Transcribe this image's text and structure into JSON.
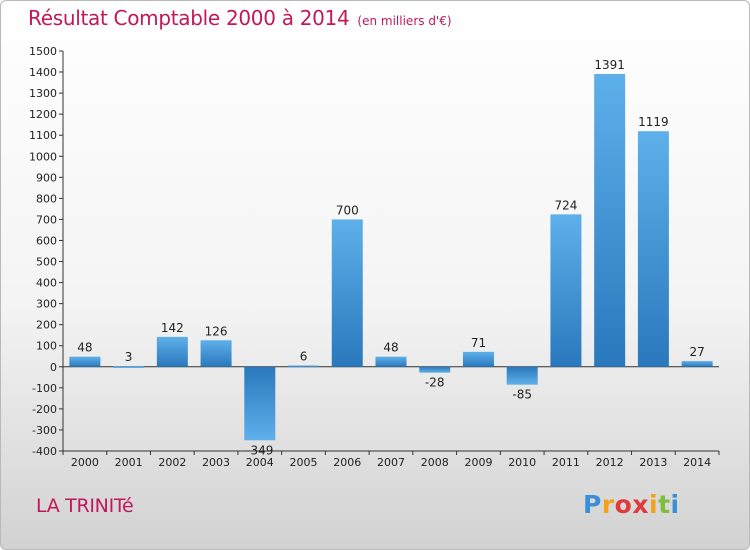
{
  "header": {
    "title": "Résultat Comptable 2000 à 2014",
    "subtitle": "(en milliers d'€)"
  },
  "footer": {
    "commune": "LA TRINITé",
    "logo_letters": [
      {
        "ch": "P",
        "color": "#3a8fd8"
      },
      {
        "ch": "r",
        "color": "#f2a21b"
      },
      {
        "ch": "o",
        "color": "#e23a3a"
      },
      {
        "ch": "x",
        "color": "#e23a3a"
      },
      {
        "ch": "i",
        "color": "#f2a21b"
      },
      {
        "ch": "t",
        "color": "#7cbf3b"
      },
      {
        "ch": "i",
        "color": "#3a8fd8"
      }
    ]
  },
  "chart_data": {
    "type": "bar",
    "categories": [
      "2000",
      "2001",
      "2002",
      "2003",
      "2004",
      "2005",
      "2006",
      "2007",
      "2008",
      "2009",
      "2010",
      "2011",
      "2012",
      "2013",
      "2014"
    ],
    "values": [
      48,
      3,
      142,
      126,
      -349,
      6,
      700,
      48,
      -28,
      71,
      -85,
      724,
      1391,
      1119,
      27
    ],
    "data_labels": [
      "48",
      "3",
      "142",
      "126",
      "-349",
      "6",
      "700",
      "48",
      "-28",
      "71",
      "-85",
      "724",
      "1391",
      "1119",
      "27"
    ],
    "title": "Résultat Comptable 2000 à 2014",
    "subtitle": "(en milliers d'€)",
    "ylim": [
      -400,
      1500
    ],
    "yticks": [
      -400,
      -300,
      -200,
      -100,
      0,
      100,
      200,
      300,
      400,
      500,
      600,
      700,
      800,
      900,
      1000,
      1100,
      1200,
      1300,
      1400,
      1500
    ],
    "grid": false,
    "bar_color_light": "#5eb0ea",
    "bar_color_dark": "#2a78bd"
  }
}
